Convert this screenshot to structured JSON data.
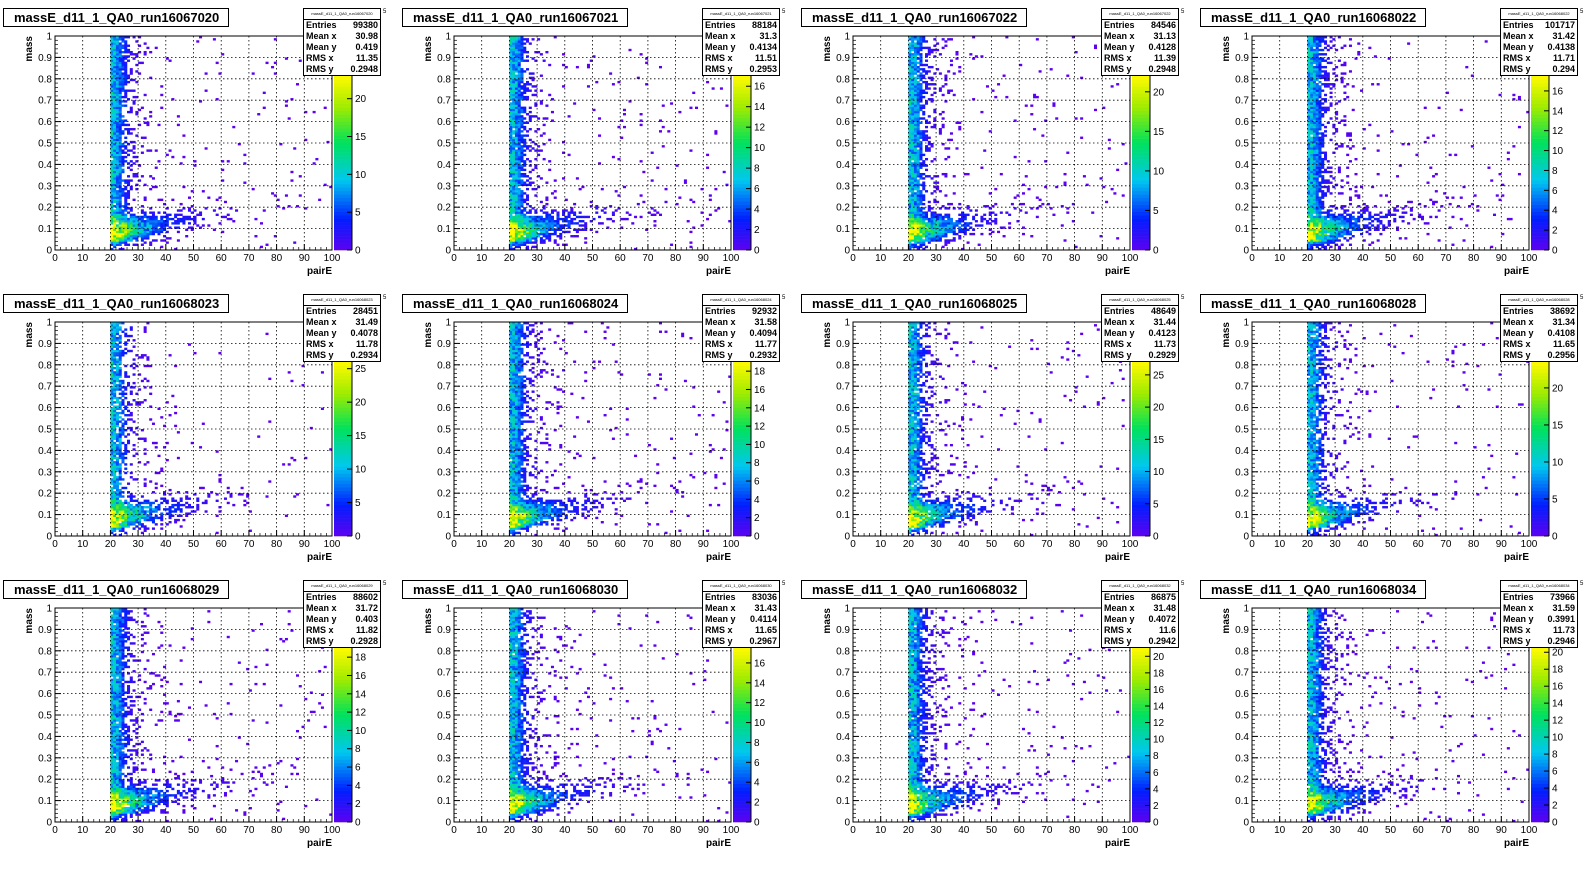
{
  "stat_labels": [
    "Entries",
    "Mean x",
    "Mean y",
    "RMS x",
    "RMS y"
  ],
  "chart_data": [
    {
      "type": "heatmap",
      "title": "massE_d11_1_QA0_run16067020",
      "stats_name": "massE_d11_1_QA0_run16067020",
      "xlabel": "pairE",
      "ylabel": "mass",
      "xlim": [
        0,
        100
      ],
      "ylim": [
        0,
        1
      ],
      "x_ticks": [
        0,
        10,
        20,
        30,
        40,
        50,
        60,
        70,
        80,
        90,
        100
      ],
      "y_ticks": [
        0,
        0.1,
        0.2,
        0.3,
        0.4,
        0.5,
        0.6,
        0.7,
        0.8,
        0.9,
        1
      ],
      "colorbar_max": 23,
      "colorbar_ticks": [
        0,
        5,
        10,
        15,
        20
      ],
      "grid": true,
      "stats": {
        "entries": "99380",
        "mean_x": "30.98",
        "mean_y": "0.419",
        "rms_x": "11.35",
        "rms_y": "0.2948"
      }
    },
    {
      "type": "heatmap",
      "title": "massE_d11_1_QA0_run16067021",
      "stats_name": "massE_d11_1_QA0_run16067021",
      "xlabel": "pairE",
      "ylabel": "mass",
      "xlim": [
        0,
        100
      ],
      "ylim": [
        0,
        1
      ],
      "x_ticks": [
        0,
        10,
        20,
        30,
        40,
        50,
        60,
        70,
        80,
        90,
        100
      ],
      "y_ticks": [
        0,
        0.1,
        0.2,
        0.3,
        0.4,
        0.5,
        0.6,
        0.7,
        0.8,
        0.9,
        1
      ],
      "colorbar_max": 17,
      "colorbar_ticks": [
        0,
        2,
        4,
        6,
        8,
        10,
        12,
        14,
        16
      ],
      "grid": true,
      "stats": {
        "entries": "88184",
        "mean_x": "31.3",
        "mean_y": "0.4134",
        "rms_x": "11.51",
        "rms_y": "0.2953"
      }
    },
    {
      "type": "heatmap",
      "title": "massE_d11_1_QA0_run16067022",
      "stats_name": "massE_d11_1_QA0_run16067022",
      "xlabel": "pairE",
      "ylabel": "mass",
      "xlim": [
        0,
        100
      ],
      "ylim": [
        0,
        1
      ],
      "x_ticks": [
        0,
        10,
        20,
        30,
        40,
        50,
        60,
        70,
        80,
        90,
        100
      ],
      "y_ticks": [
        0,
        0.1,
        0.2,
        0.3,
        0.4,
        0.5,
        0.6,
        0.7,
        0.8,
        0.9,
        1
      ],
      "colorbar_max": 22,
      "colorbar_ticks": [
        0,
        5,
        10,
        15,
        20
      ],
      "grid": true,
      "stats": {
        "entries": "84546",
        "mean_x": "31.13",
        "mean_y": "0.4128",
        "rms_x": "11.39",
        "rms_y": "0.2948"
      }
    },
    {
      "type": "heatmap",
      "title": "massE_d11_1_QA0_run16068022",
      "stats_name": "massE_d11_1_QA0_run16068022",
      "xlabel": "pairE",
      "ylabel": "mass",
      "xlim": [
        0,
        100
      ],
      "ylim": [
        0,
        1
      ],
      "x_ticks": [
        0,
        10,
        20,
        30,
        40,
        50,
        60,
        70,
        80,
        90,
        100
      ],
      "y_ticks": [
        0,
        0.1,
        0.2,
        0.3,
        0.4,
        0.5,
        0.6,
        0.7,
        0.8,
        0.9,
        1
      ],
      "colorbar_max": 17.5,
      "colorbar_ticks": [
        0,
        2,
        4,
        6,
        8,
        10,
        12,
        14,
        16
      ],
      "grid": true,
      "stats": {
        "entries": "101717",
        "mean_x": "31.42",
        "mean_y": "0.4138",
        "rms_x": "11.71",
        "rms_y": "0.294"
      }
    },
    {
      "type": "heatmap",
      "title": "massE_d11_1_QA0_run16068023",
      "stats_name": "massE_d11_1_QA0_run16068023",
      "xlabel": "pairE",
      "ylabel": "mass",
      "xlim": [
        0,
        100
      ],
      "ylim": [
        0,
        1
      ],
      "x_ticks": [
        0,
        10,
        20,
        30,
        40,
        50,
        60,
        70,
        80,
        90,
        100
      ],
      "y_ticks": [
        0,
        0.1,
        0.2,
        0.3,
        0.4,
        0.5,
        0.6,
        0.7,
        0.8,
        0.9,
        1
      ],
      "colorbar_max": 26,
      "colorbar_ticks": [
        0,
        5,
        10,
        15,
        20,
        25
      ],
      "grid": true,
      "stats": {
        "entries": "28451",
        "mean_x": "31.49",
        "mean_y": "0.4078",
        "rms_x": "11.78",
        "rms_y": "0.2934"
      }
    },
    {
      "type": "heatmap",
      "title": "massE_d11_1_QA0_run16068024",
      "stats_name": "massE_d11_1_QA0_run16068024",
      "xlabel": "pairE",
      "ylabel": "mass",
      "xlim": [
        0,
        100
      ],
      "ylim": [
        0,
        1
      ],
      "x_ticks": [
        0,
        10,
        20,
        30,
        40,
        50,
        60,
        70,
        80,
        90,
        100
      ],
      "y_ticks": [
        0,
        0.1,
        0.2,
        0.3,
        0.4,
        0.5,
        0.6,
        0.7,
        0.8,
        0.9,
        1
      ],
      "colorbar_max": 19,
      "colorbar_ticks": [
        0,
        2,
        4,
        6,
        8,
        10,
        12,
        14,
        16,
        18
      ],
      "grid": true,
      "stats": {
        "entries": "92932",
        "mean_x": "31.58",
        "mean_y": "0.4094",
        "rms_x": "11.77",
        "rms_y": "0.2932"
      }
    },
    {
      "type": "heatmap",
      "title": "massE_d11_1_QA0_run16068025",
      "stats_name": "massE_d11_1_QA0_run16068025",
      "xlabel": "pairE",
      "ylabel": "mass",
      "xlim": [
        0,
        100
      ],
      "ylim": [
        0,
        1
      ],
      "x_ticks": [
        0,
        10,
        20,
        30,
        40,
        50,
        60,
        70,
        80,
        90,
        100
      ],
      "y_ticks": [
        0,
        0.1,
        0.2,
        0.3,
        0.4,
        0.5,
        0.6,
        0.7,
        0.8,
        0.9,
        1
      ],
      "colorbar_max": 27,
      "colorbar_ticks": [
        0,
        5,
        10,
        15,
        20,
        25
      ],
      "grid": true,
      "stats": {
        "entries": "48649",
        "mean_x": "31.44",
        "mean_y": "0.4123",
        "rms_x": "11.73",
        "rms_y": "0.2929"
      }
    },
    {
      "type": "heatmap",
      "title": "massE_d11_1_QA0_run16068028",
      "stats_name": "massE_d11_1_QA0_run16068028",
      "xlabel": "pairE",
      "ylabel": "mass",
      "xlim": [
        0,
        100
      ],
      "ylim": [
        0,
        1
      ],
      "x_ticks": [
        0,
        10,
        20,
        30,
        40,
        50,
        60,
        70,
        80,
        90,
        100
      ],
      "y_ticks": [
        0,
        0.1,
        0.2,
        0.3,
        0.4,
        0.5,
        0.6,
        0.7,
        0.8,
        0.9,
        1
      ],
      "colorbar_max": 23.5,
      "colorbar_ticks": [
        0,
        5,
        10,
        15,
        20
      ],
      "grid": true,
      "stats": {
        "entries": "38692",
        "mean_x": "31.34",
        "mean_y": "0.4108",
        "rms_x": "11.65",
        "rms_y": "0.2956"
      }
    },
    {
      "type": "heatmap",
      "title": "massE_d11_1_QA0_run16068029",
      "stats_name": "massE_d11_1_QA0_run16068029",
      "xlabel": "pairE",
      "ylabel": "mass",
      "xlim": [
        0,
        100
      ],
      "ylim": [
        0,
        1
      ],
      "x_ticks": [
        0,
        10,
        20,
        30,
        40,
        50,
        60,
        70,
        80,
        90,
        100
      ],
      "y_ticks": [
        0,
        0.1,
        0.2,
        0.3,
        0.4,
        0.5,
        0.6,
        0.7,
        0.8,
        0.9,
        1
      ],
      "colorbar_max": 19,
      "colorbar_ticks": [
        0,
        2,
        4,
        6,
        8,
        10,
        12,
        14,
        16,
        18
      ],
      "grid": true,
      "stats": {
        "entries": "88602",
        "mean_x": "31.72",
        "mean_y": "0.403",
        "rms_x": "11.82",
        "rms_y": "0.2928"
      }
    },
    {
      "type": "heatmap",
      "title": "massE_d11_1_QA0_run16068030",
      "stats_name": "massE_d11_1_QA0_run16068030",
      "xlabel": "pairE",
      "ylabel": "mass",
      "xlim": [
        0,
        100
      ],
      "ylim": [
        0,
        1
      ],
      "x_ticks": [
        0,
        10,
        20,
        30,
        40,
        50,
        60,
        70,
        80,
        90,
        100
      ],
      "y_ticks": [
        0,
        0.1,
        0.2,
        0.3,
        0.4,
        0.5,
        0.6,
        0.7,
        0.8,
        0.9,
        1
      ],
      "colorbar_max": 17.5,
      "colorbar_ticks": [
        0,
        2,
        4,
        6,
        8,
        10,
        12,
        14,
        16
      ],
      "grid": true,
      "stats": {
        "entries": "83036",
        "mean_x": "31.43",
        "mean_y": "0.4114",
        "rms_x": "11.65",
        "rms_y": "0.2967"
      }
    },
    {
      "type": "heatmap",
      "title": "massE_d11_1_QA0_run16068032",
      "stats_name": "massE_d11_1_QA0_run16068032",
      "xlabel": "pairE",
      "ylabel": "mass",
      "xlim": [
        0,
        100
      ],
      "ylim": [
        0,
        1
      ],
      "x_ticks": [
        0,
        10,
        20,
        30,
        40,
        50,
        60,
        70,
        80,
        90,
        100
      ],
      "y_ticks": [
        0,
        0.1,
        0.2,
        0.3,
        0.4,
        0.5,
        0.6,
        0.7,
        0.8,
        0.9,
        1
      ],
      "colorbar_max": 21,
      "colorbar_ticks": [
        0,
        2,
        4,
        6,
        8,
        10,
        12,
        14,
        16,
        18,
        20
      ],
      "grid": true,
      "stats": {
        "entries": "86875",
        "mean_x": "31.48",
        "mean_y": "0.4072",
        "rms_x": "11.6",
        "rms_y": "0.2942"
      }
    },
    {
      "type": "heatmap",
      "title": "massE_d11_1_QA0_run16068034",
      "stats_name": "massE_d11_1_QA0_run16068034",
      "xlabel": "pairE",
      "ylabel": "mass",
      "xlim": [
        0,
        100
      ],
      "ylim": [
        0,
        1
      ],
      "x_ticks": [
        0,
        10,
        20,
        30,
        40,
        50,
        60,
        70,
        80,
        90,
        100
      ],
      "y_ticks": [
        0,
        0.1,
        0.2,
        0.3,
        0.4,
        0.5,
        0.6,
        0.7,
        0.8,
        0.9,
        1
      ],
      "colorbar_max": 20.5,
      "colorbar_ticks": [
        0,
        2,
        4,
        6,
        8,
        10,
        12,
        14,
        16,
        18,
        20
      ],
      "grid": true,
      "stats": {
        "entries": "73966",
        "mean_x": "31.59",
        "mean_y": "0.3991",
        "rms_x": "11.73",
        "rms_y": "0.2946"
      }
    }
  ]
}
